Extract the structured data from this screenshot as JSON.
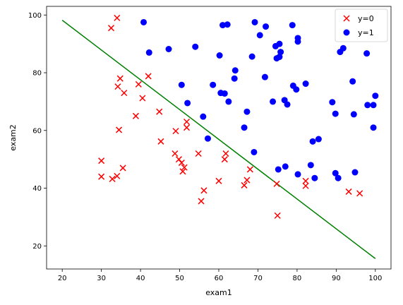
{
  "chart_data": {
    "type": "scatter",
    "xlabel": "exam1",
    "ylabel": "exam2",
    "xlim": [
      16,
      104
    ],
    "ylim": [
      12,
      103
    ],
    "xticks": [
      20,
      30,
      40,
      50,
      60,
      70,
      80,
      90,
      100
    ],
    "yticks": [
      20,
      40,
      60,
      80,
      100
    ],
    "grid": false,
    "legend_position": "top-right",
    "series": [
      {
        "name": "y=0",
        "marker": "x",
        "color": "#ff0000",
        "points": [
          [
            34.0,
            99.0
          ],
          [
            32.5,
            95.5
          ],
          [
            42.0,
            78.8
          ],
          [
            34.8,
            78.0
          ],
          [
            39.5,
            76.0
          ],
          [
            34.2,
            75.2
          ],
          [
            35.8,
            73.0
          ],
          [
            40.5,
            71.2
          ],
          [
            44.8,
            66.5
          ],
          [
            38.8,
            65.0
          ],
          [
            51.8,
            63.0
          ],
          [
            51.8,
            61.0
          ],
          [
            34.5,
            60.2
          ],
          [
            49.0,
            59.8
          ],
          [
            45.2,
            56.2
          ],
          [
            48.8,
            52.0
          ],
          [
            54.8,
            52.0
          ],
          [
            61.8,
            52.0
          ],
          [
            49.8,
            50.0
          ],
          [
            61.5,
            50.0
          ],
          [
            50.5,
            48.8
          ],
          [
            51.2,
            47.2
          ],
          [
            35.5,
            47.0
          ],
          [
            68.0,
            46.5
          ],
          [
            50.8,
            45.8
          ],
          [
            30.0,
            49.5
          ],
          [
            30.0,
            44.0
          ],
          [
            34.0,
            44.2
          ],
          [
            32.8,
            43.2
          ],
          [
            60.0,
            42.5
          ],
          [
            66.5,
            41.0
          ],
          [
            67.2,
            42.8
          ],
          [
            82.2,
            42.5
          ],
          [
            74.8,
            41.5
          ],
          [
            82.2,
            40.8
          ],
          [
            56.2,
            39.2
          ],
          [
            93.2,
            38.8
          ],
          [
            96.0,
            38.2
          ],
          [
            55.5,
            35.5
          ],
          [
            75.0,
            30.5
          ]
        ]
      },
      {
        "name": "y=1",
        "marker": "o",
        "color": "#0000ff",
        "points": [
          [
            40.8,
            97.5
          ],
          [
            69.2,
            97.5
          ],
          [
            61.0,
            96.5
          ],
          [
            62.2,
            96.7
          ],
          [
            72.0,
            96.0
          ],
          [
            78.8,
            96.5
          ],
          [
            70.5,
            93.0
          ],
          [
            80.2,
            92.0
          ],
          [
            80.2,
            90.8
          ],
          [
            75.5,
            90.0
          ],
          [
            74.5,
            89.2
          ],
          [
            91.8,
            88.5
          ],
          [
            91.0,
            87.2
          ],
          [
            97.8,
            86.7
          ],
          [
            54.0,
            89.0
          ],
          [
            47.2,
            88.2
          ],
          [
            42.2,
            87.0
          ],
          [
            60.2,
            86.0
          ],
          [
            68.5,
            85.6
          ],
          [
            74.8,
            85.0
          ],
          [
            75.8,
            87.2
          ],
          [
            75.5,
            85.5
          ],
          [
            64.2,
            80.8
          ],
          [
            64.0,
            78.0
          ],
          [
            71.8,
            78.5
          ],
          [
            58.5,
            75.8
          ],
          [
            50.5,
            75.8
          ],
          [
            94.2,
            77.0
          ],
          [
            79.0,
            75.5
          ],
          [
            79.8,
            74.2
          ],
          [
            82.2,
            76.2
          ],
          [
            60.5,
            73.0
          ],
          [
            61.5,
            72.8
          ],
          [
            62.5,
            70.0
          ],
          [
            52.0,
            69.5
          ],
          [
            73.8,
            70.0
          ],
          [
            76.8,
            70.5
          ],
          [
            77.5,
            69.0
          ],
          [
            89.0,
            69.8
          ],
          [
            98.0,
            68.8
          ],
          [
            99.5,
            68.8
          ],
          [
            100.0,
            72.0
          ],
          [
            56.0,
            64.8
          ],
          [
            67.2,
            66.5
          ],
          [
            89.8,
            65.8
          ],
          [
            94.5,
            65.6
          ],
          [
            66.5,
            61.0
          ],
          [
            99.5,
            61.0
          ],
          [
            57.2,
            57.2
          ],
          [
            84.0,
            56.2
          ],
          [
            85.5,
            57.0
          ],
          [
            69.0,
            52.5
          ],
          [
            83.5,
            48.0
          ],
          [
            77.0,
            47.5
          ],
          [
            75.2,
            46.5
          ],
          [
            80.2,
            44.8
          ],
          [
            84.5,
            43.5
          ],
          [
            89.8,
            45.2
          ],
          [
            90.5,
            43.5
          ],
          [
            94.8,
            45.5
          ]
        ]
      }
    ],
    "decision_boundary": {
      "color": "#008000",
      "points": [
        [
          20,
          98.2
        ],
        [
          100,
          15.6
        ]
      ]
    }
  }
}
